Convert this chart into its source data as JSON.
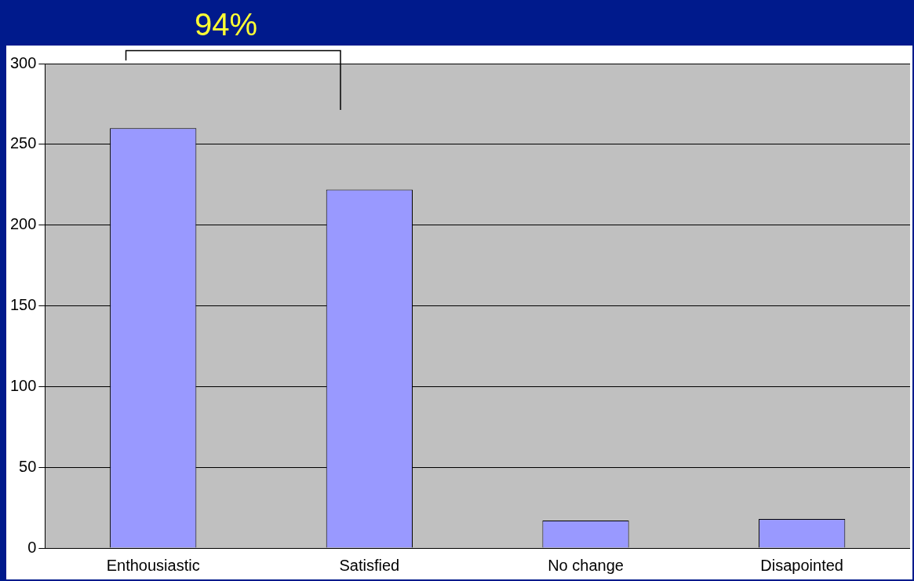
{
  "chart_data": {
    "type": "bar",
    "categories": [
      "Enthousiastic",
      "Satisfied",
      "No change",
      "Disapointed"
    ],
    "values": [
      260,
      222,
      17,
      18
    ],
    "color": "#9999ff",
    "ylim": [
      0,
      300
    ],
    "yticks": [
      0,
      50,
      100,
      150,
      200,
      250,
      300
    ],
    "grid": "y",
    "annotations": [
      "94%"
    ]
  }
}
